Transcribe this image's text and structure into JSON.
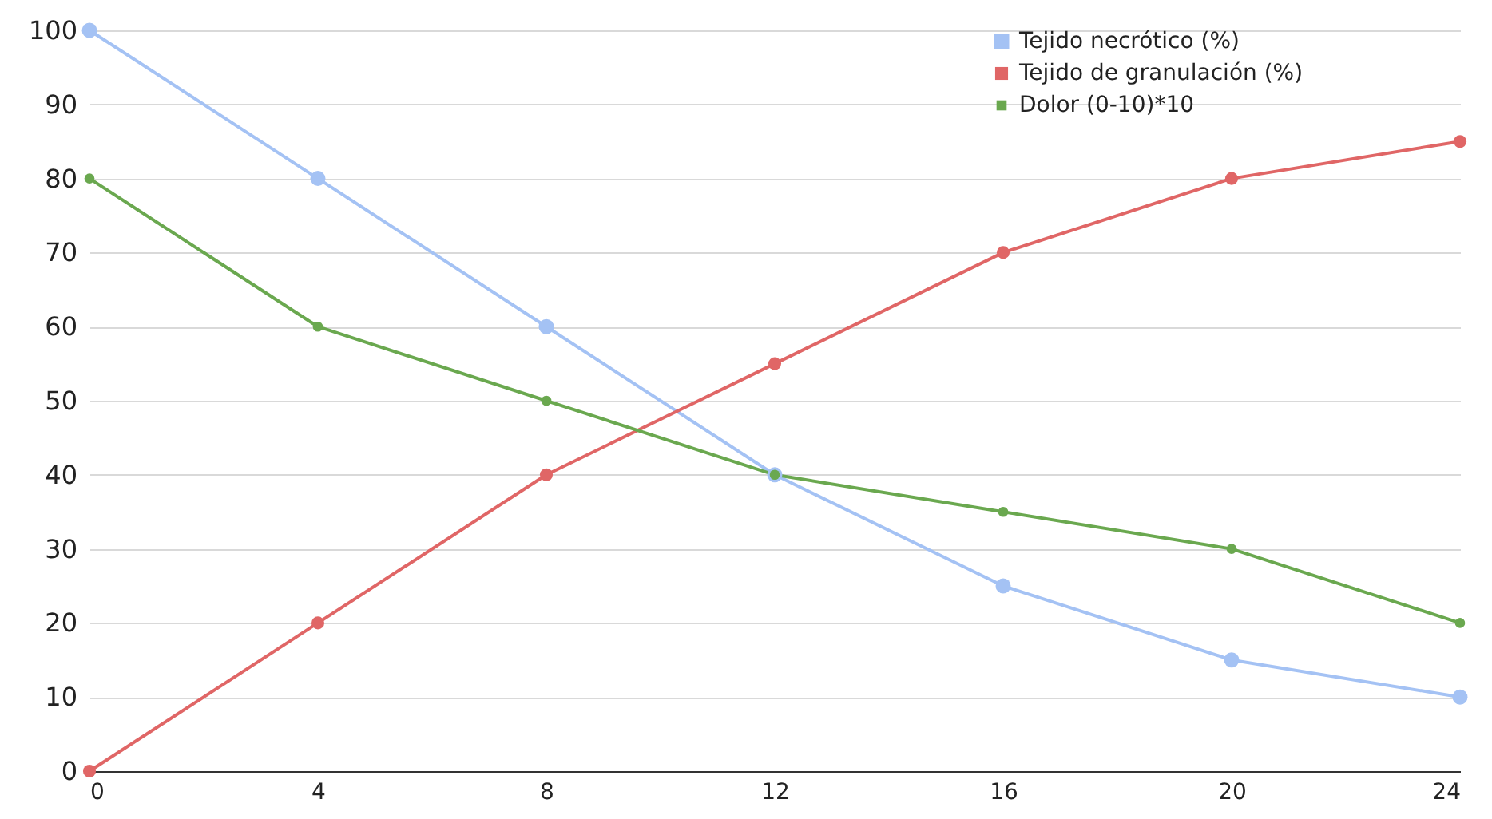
{
  "chart_data": {
    "type": "line",
    "x": [
      0,
      4,
      8,
      12,
      16,
      20,
      24
    ],
    "series": [
      {
        "name": "Tejido necrótico (%)",
        "color": "#a4c2f4",
        "values": [
          100,
          80,
          60,
          40,
          25,
          15,
          10
        ]
      },
      {
        "name": "Tejido de granulación (%)",
        "color": "#e06666",
        "values": [
          0,
          20,
          40,
          55,
          70,
          80,
          85
        ]
      },
      {
        "name": "Dolor (0-10)*10",
        "color": "#6aa84f",
        "values": [
          80,
          60,
          50,
          40,
          35,
          30,
          20
        ]
      }
    ],
    "xlim": [
      0,
      24
    ],
    "xticks": [
      0,
      4,
      8,
      12,
      16,
      20,
      24
    ],
    "ylim": [
      0,
      100
    ],
    "yticks": [
      0,
      10,
      20,
      30,
      40,
      50,
      60,
      70,
      80,
      90,
      100
    ],
    "grid": "y",
    "legend": "top right",
    "marker": "circle",
    "line_style": "solid"
  }
}
